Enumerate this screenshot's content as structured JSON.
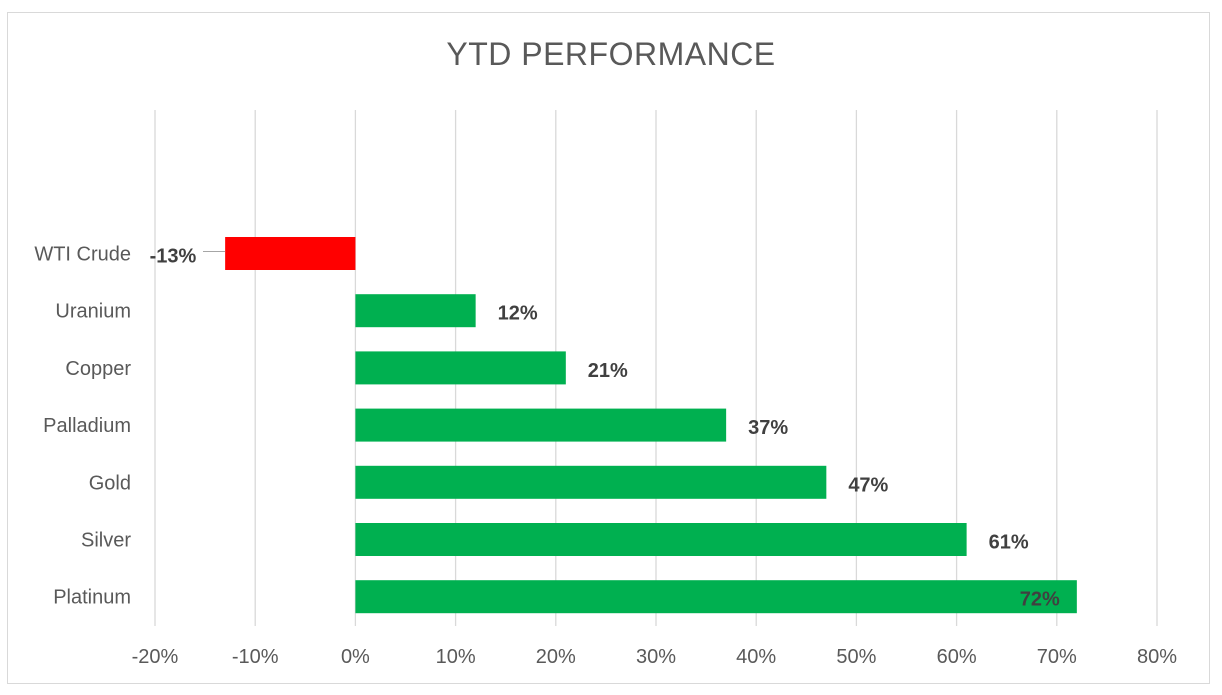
{
  "chart_data": {
    "type": "bar",
    "orientation": "horizontal",
    "title": "YTD PERFORMANCE",
    "categories": [
      "WTI Crude",
      "Uranium",
      "Copper",
      "Palladium",
      "Gold",
      "Silver",
      "Platinum"
    ],
    "values": [
      -13,
      12,
      21,
      37,
      47,
      61,
      72
    ],
    "data_labels": [
      "-13%",
      "12%",
      "21%",
      "37%",
      "47%",
      "61%",
      "72%"
    ],
    "x_ticks": [
      "-20%",
      "-10%",
      "0%",
      "10%",
      "20%",
      "30%",
      "40%",
      "50%",
      "60%",
      "70%",
      "80%"
    ],
    "xlim": [
      -20,
      80
    ],
    "xlabel": "",
    "ylabel": "",
    "grid": "vertical major gridlines",
    "legend": "none",
    "colors": {
      "positive": "#00b050",
      "negative": "#ff0000",
      "grid": "#d9d9d9",
      "text": "#595959"
    }
  }
}
